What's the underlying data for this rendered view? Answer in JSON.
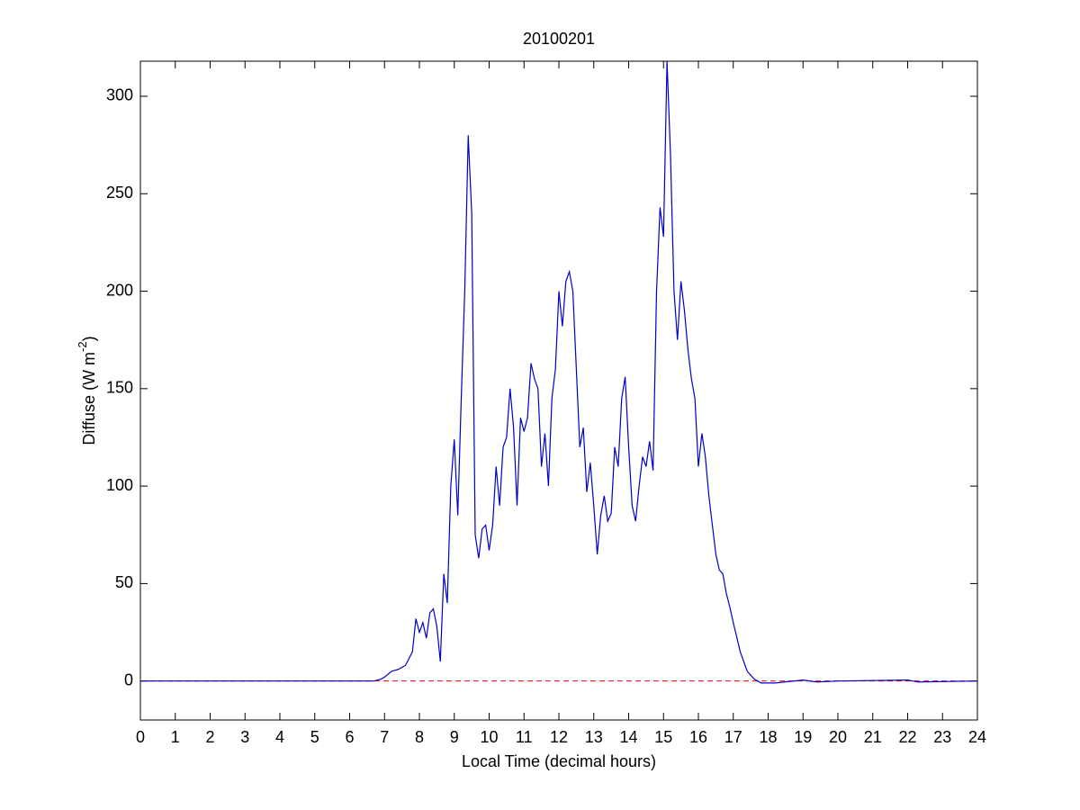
{
  "chart_data": {
    "type": "line",
    "title": "20100201",
    "xlabel": "Local Time (decimal hours)",
    "ylabel": {
      "text": "Diffuse (W m",
      "sup": "-2",
      "end": ")"
    },
    "xlim": [
      0,
      24
    ],
    "ylim": [
      -20,
      318
    ],
    "xticks": [
      0,
      1,
      2,
      3,
      4,
      5,
      6,
      7,
      8,
      9,
      10,
      11,
      12,
      13,
      14,
      15,
      16,
      17,
      18,
      19,
      20,
      21,
      22,
      23,
      24
    ],
    "yticks": [
      0,
      50,
      100,
      150,
      200,
      250,
      300
    ],
    "color": "#0000cc",
    "reference_line": {
      "value": 0,
      "color": "#ff0000",
      "dashed": true
    },
    "x": [
      0,
      6.7,
      6.9,
      7.0,
      7.2,
      7.4,
      7.6,
      7.8,
      7.9,
      8.0,
      8.1,
      8.2,
      8.3,
      8.4,
      8.5,
      8.6,
      8.7,
      8.8,
      8.9,
      9.0,
      9.1,
      9.2,
      9.3,
      9.4,
      9.5,
      9.6,
      9.7,
      9.8,
      9.9,
      10.0,
      10.1,
      10.2,
      10.3,
      10.4,
      10.5,
      10.6,
      10.7,
      10.8,
      10.9,
      11.0,
      11.1,
      11.2,
      11.3,
      11.4,
      11.5,
      11.6,
      11.7,
      11.8,
      11.9,
      12.0,
      12.1,
      12.2,
      12.3,
      12.4,
      12.5,
      12.6,
      12.7,
      12.8,
      12.9,
      13.0,
      13.1,
      13.2,
      13.3,
      13.4,
      13.5,
      13.6,
      13.7,
      13.8,
      13.9,
      14.0,
      14.1,
      14.2,
      14.3,
      14.4,
      14.5,
      14.6,
      14.7,
      14.8,
      14.9,
      15.0,
      15.1,
      15.2,
      15.3,
      15.4,
      15.5,
      15.6,
      15.7,
      15.8,
      15.9,
      16.0,
      16.1,
      16.2,
      16.3,
      16.4,
      16.5,
      16.6,
      16.7,
      16.8,
      16.9,
      17.0,
      17.2,
      17.4,
      17.6,
      17.8,
      18.2,
      19.0,
      19.4,
      20,
      22,
      22.3,
      24
    ],
    "values": [
      0,
      0,
      1,
      2,
      5,
      6,
      8,
      15,
      32,
      25,
      30,
      22,
      35,
      37,
      28,
      10,
      55,
      40,
      100,
      124,
      85,
      145,
      200,
      280,
      240,
      75,
      63,
      78,
      80,
      67,
      80,
      110,
      90,
      120,
      125,
      150,
      130,
      90,
      135,
      128,
      135,
      163,
      155,
      150,
      110,
      127,
      100,
      145,
      160,
      200,
      182,
      205,
      210,
      200,
      160,
      120,
      130,
      97,
      112,
      90,
      65,
      85,
      95,
      82,
      86,
      120,
      110,
      145,
      156,
      120,
      90,
      82,
      100,
      115,
      110,
      123,
      108,
      200,
      243,
      228,
      318,
      270,
      200,
      175,
      205,
      190,
      170,
      155,
      145,
      110,
      127,
      115,
      95,
      80,
      65,
      57,
      55,
      45,
      38,
      30,
      15,
      5,
      1,
      -1,
      -1,
      0.5,
      -0.5,
      0,
      0.5,
      -0.5,
      0
    ]
  }
}
